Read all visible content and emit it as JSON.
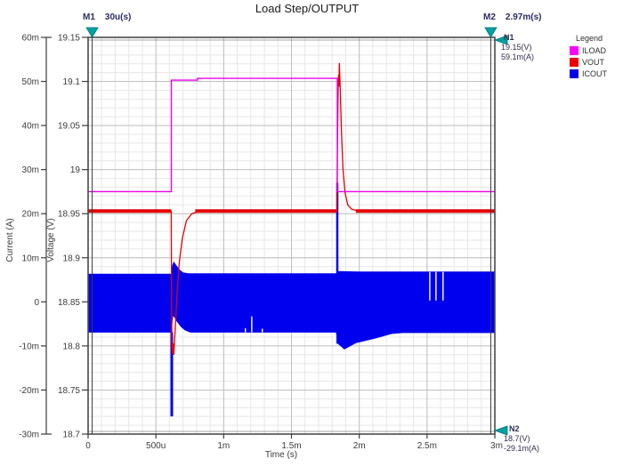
{
  "title": "Load Step/OUTPUT",
  "axes": {
    "x": {
      "label": "Time (s)",
      "min_us": 0,
      "max_us": 3000,
      "ticks": [
        {
          "v": 0,
          "label": "0"
        },
        {
          "v": 500,
          "label": "500u"
        },
        {
          "v": 1000,
          "label": "1m"
        },
        {
          "v": 1500,
          "label": "1.5m"
        },
        {
          "v": 2000,
          "label": "2m"
        },
        {
          "v": 2500,
          "label": "2.5m"
        },
        {
          "v": 3000,
          "label": "3m"
        }
      ]
    },
    "current": {
      "label": "Current (A)",
      "min_mA": -30,
      "max_mA": 60,
      "ticks": [
        {
          "v": 60,
          "label": "60m"
        },
        {
          "v": 50,
          "label": "50m"
        },
        {
          "v": 40,
          "label": "40m"
        },
        {
          "v": 30,
          "label": "30m"
        },
        {
          "v": 20,
          "label": "20m"
        },
        {
          "v": 10,
          "label": "10m"
        },
        {
          "v": 0,
          "label": "0"
        },
        {
          "v": -10,
          "label": "-10m"
        },
        {
          "v": -20,
          "label": "-20m"
        },
        {
          "v": -30,
          "label": "-30m"
        }
      ]
    },
    "voltage": {
      "label": "Voltage (V)",
      "min_V": 18.7,
      "max_V": 19.15,
      "ticks": [
        {
          "v": 19.15,
          "label": "19.15"
        },
        {
          "v": 19.1,
          "label": "19.1"
        },
        {
          "v": 19.05,
          "label": "19.05"
        },
        {
          "v": 19.0,
          "label": "19"
        },
        {
          "v": 18.95,
          "label": "18.95"
        },
        {
          "v": 18.9,
          "label": "18.9"
        },
        {
          "v": 18.85,
          "label": "18.85"
        },
        {
          "v": 18.8,
          "label": "18.8"
        },
        {
          "v": 18.75,
          "label": "18.75"
        },
        {
          "v": 18.7,
          "label": "18.7"
        }
      ]
    }
  },
  "markers": {
    "m1": {
      "name": "M1",
      "value": "30u(s)",
      "t_us": 30
    },
    "m2": {
      "name": "M2",
      "value": "2.97m(s)",
      "t_us": 2970
    },
    "n1": {
      "name": "N1",
      "lines": [
        "19.15(V)",
        "59.1m(A)"
      ]
    },
    "n2": {
      "name": "N2",
      "lines": [
        "18.7(V)",
        "-29.1m(A)"
      ]
    },
    "triangle_color": "#00a0a0"
  },
  "legend": {
    "title": "Legend",
    "items": [
      {
        "label": "ILOAD",
        "color": "#ff00ff"
      },
      {
        "label": "VOUT",
        "color": "#ee0000"
      },
      {
        "label": "ICOUT",
        "color": "#0000ee"
      }
    ]
  },
  "chart_data": {
    "type": "line",
    "title": "Load Step/OUTPUT",
    "xlabel": "Time (s)",
    "x_range_us": [
      0,
      3000
    ],
    "left_axis": {
      "name": "Current (A)",
      "range_mA": [
        -30,
        60
      ]
    },
    "right_axis": {
      "name": "Voltage (V)",
      "range_V": [
        18.7,
        19.15
      ]
    },
    "grid": {
      "major_color": "#c0c0c0",
      "minor_color": "#e7e7e7",
      "frame_color": "#4a4a4a",
      "minor_x_us": 100,
      "minor_current_mA": 2
    },
    "series": [
      {
        "name": "ILOAD",
        "axis": "current",
        "color": "#ee00ee",
        "width": 1.4,
        "points_t_us_mA": [
          [
            0,
            25
          ],
          [
            614,
            25
          ],
          [
            614,
            50.3
          ],
          [
            807,
            50.3
          ],
          [
            807,
            50.7
          ],
          [
            1838,
            50.7
          ],
          [
            1838,
            25
          ],
          [
            3000,
            25
          ]
        ]
      },
      {
        "name": "VOUT",
        "axis": "voltage",
        "color": "#e60000",
        "width": 1.3,
        "points_t_us_V": [
          [
            0,
            18.953
          ],
          [
            613,
            18.953
          ],
          [
            615,
            18.88
          ],
          [
            618,
            18.8
          ],
          [
            622,
            18.791
          ],
          [
            627,
            18.803
          ],
          [
            632,
            18.79
          ],
          [
            640,
            18.812
          ],
          [
            655,
            18.856
          ],
          [
            672,
            18.894
          ],
          [
            695,
            18.922
          ],
          [
            725,
            18.942
          ],
          [
            765,
            18.95
          ],
          [
            830,
            18.953
          ],
          [
            1835,
            18.953
          ],
          [
            1837,
            18.99
          ],
          [
            1841,
            19.05
          ],
          [
            1845,
            19.1
          ],
          [
            1848,
            19.108
          ],
          [
            1850,
            19.094
          ],
          [
            1853,
            19.121
          ],
          [
            1858,
            19.1
          ],
          [
            1868,
            19.046
          ],
          [
            1880,
            19.0
          ],
          [
            1895,
            18.974
          ],
          [
            1915,
            18.96
          ],
          [
            1945,
            18.955
          ],
          [
            2000,
            18.953
          ],
          [
            3000,
            18.953
          ]
        ],
        "thick_segments_t_us": [
          [
            0,
            613
          ],
          [
            790,
            1835
          ],
          [
            1975,
            3000
          ]
        ],
        "thick_width": 4
      },
      {
        "name": "ICOUT",
        "axis": "current",
        "color": "#0000ee",
        "band_top_t_us_mA": [
          [
            0,
            6.3
          ],
          [
            612,
            6.3
          ],
          [
            622,
            8.2
          ],
          [
            632,
            9.0
          ],
          [
            648,
            8.3
          ],
          [
            672,
            7.3
          ],
          [
            700,
            6.6
          ],
          [
            740,
            6.4
          ],
          [
            1833,
            6.4
          ],
          [
            1843,
            6.9
          ],
          [
            2000,
            6.8
          ],
          [
            3000,
            6.8
          ]
        ],
        "band_bottom_t_us_mA": [
          [
            0,
            -6.9
          ],
          [
            612,
            -6.9
          ],
          [
            625,
            -3.0
          ],
          [
            640,
            -3.6
          ],
          [
            660,
            -4.6
          ],
          [
            685,
            -5.6
          ],
          [
            715,
            -6.4
          ],
          [
            755,
            -6.9
          ],
          [
            1830,
            -6.9
          ],
          [
            1845,
            -9.5
          ],
          [
            1890,
            -10.7
          ],
          [
            1975,
            -9.3
          ],
          [
            2110,
            -8.3
          ],
          [
            2240,
            -7.2
          ],
          [
            2320,
            -7.0
          ],
          [
            3000,
            -7.0
          ]
        ],
        "spikes_t_us_mA": [
          {
            "t": 617,
            "from": -6.9,
            "to": -26,
            "w": 3
          },
          {
            "t": 1838,
            "from": 6.4,
            "to": 27,
            "w": 2.5
          },
          {
            "t": 1838,
            "from": 6.4,
            "to": -9.5,
            "w": 2
          }
        ],
        "white_gaps_t_us_mA": [
          {
            "t": 2520,
            "from": 6.8,
            "to": 0.3
          },
          {
            "t": 2566,
            "from": 6.8,
            "to": 0.3
          },
          {
            "t": 2618,
            "from": 6.8,
            "to": 0.3
          },
          {
            "t": 1207,
            "from": -6.9,
            "to": -3.3
          },
          {
            "t": 1160,
            "from": -6.9,
            "to": -6.0
          },
          {
            "t": 1285,
            "from": -6.9,
            "to": -6.1
          }
        ]
      }
    ],
    "cursors": [
      {
        "name": "M1",
        "t_us": 30
      },
      {
        "name": "M2",
        "t_us": 2970
      }
    ],
    "cursor_color": "#3a3a3a"
  }
}
